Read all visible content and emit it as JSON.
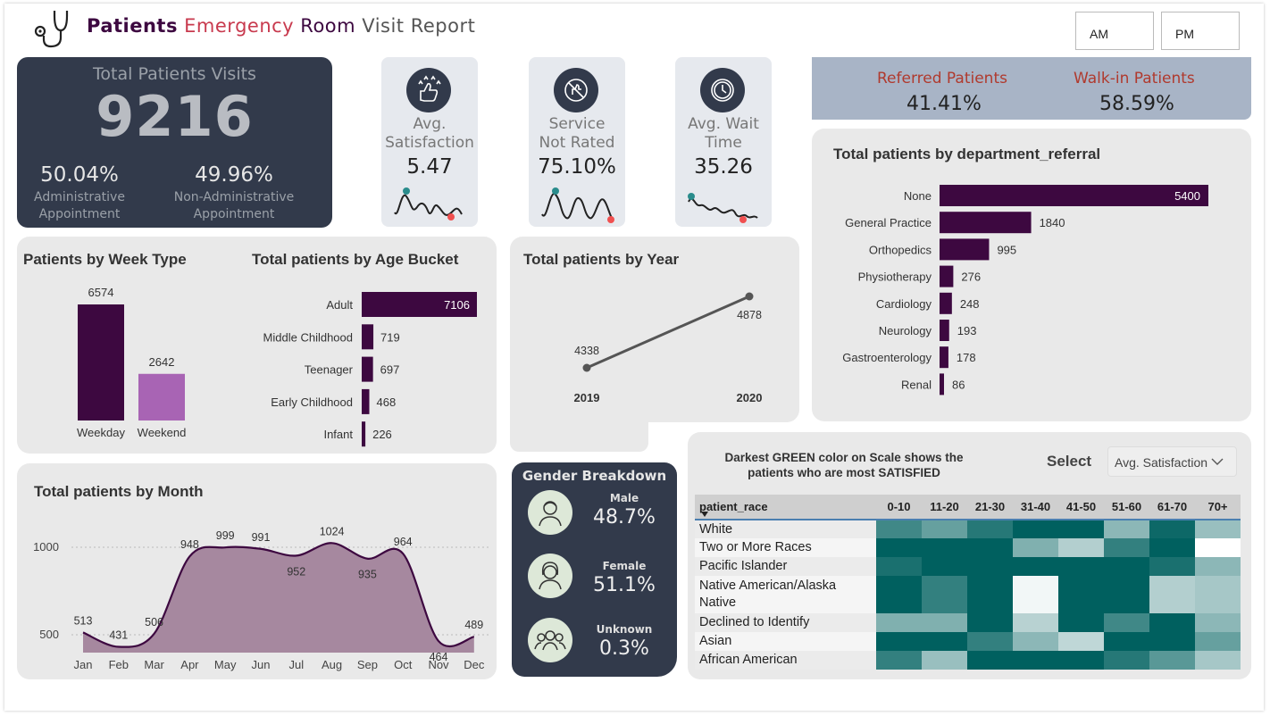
{
  "header": {
    "title_1": "Patients",
    "title_2": "Emergency",
    "title_3": "Room",
    "title_4": "Visit Report",
    "icon": "stethoscope-icon",
    "slicer_am": "AM",
    "slicer_pm": "PM"
  },
  "kpi": {
    "total_label": "Total Patients Visits",
    "total_value": "9216",
    "admin_pct": "50.04%",
    "admin_label_1": "Administrative",
    "admin_label_2": "Appointment",
    "nonadmin_pct": "49.96%",
    "nonadmin_label_1": "Non-Administrative",
    "nonadmin_label_2": "Appointment"
  },
  "cards": [
    {
      "label_1": "Avg.",
      "label_2": "Satisfaction",
      "value": "5.47",
      "icon": "thumbs-up-stars-icon"
    },
    {
      "label_1": "Service",
      "label_2": "Not Rated",
      "value": "75.10%",
      "icon": "no-rating-hand-icon"
    },
    {
      "label_1": "Avg. Wait",
      "label_2": "Time",
      "value": "35.26",
      "icon": "clock-icon"
    }
  ],
  "ratio": {
    "referred_label": "Referred Patients",
    "referred_value": "41.41%",
    "walkin_label": "Walk-in Patients",
    "walkin_value": "58.59%"
  },
  "week_type": {
    "title": "Patients by Week Type",
    "chart_data": {
      "type": "bar",
      "categories": [
        "Weekday",
        "Weekend"
      ],
      "values": [
        6574,
        2642
      ],
      "colors": [
        "#3d0840",
        "#a864b4"
      ]
    }
  },
  "age": {
    "title": "Total patients by Age Bucket",
    "chart_data": {
      "type": "bar",
      "orientation": "horizontal",
      "categories": [
        "Adult",
        "Middle Childhood",
        "Teenager",
        "Early Childhood",
        "Infant"
      ],
      "values": [
        7106,
        719,
        697,
        468,
        226
      ]
    }
  },
  "year": {
    "title": "Total patients by Year",
    "chart_data": {
      "type": "line",
      "categories": [
        "2019",
        "2020"
      ],
      "values": [
        4338,
        4878
      ]
    }
  },
  "dept": {
    "title": "Total patients by department_referral",
    "chart_data": {
      "type": "bar",
      "orientation": "horizontal",
      "categories": [
        "None",
        "General Practice",
        "Orthopedics",
        "Physiotherapy",
        "Cardiology",
        "Neurology",
        "Gastroenterology",
        "Renal"
      ],
      "values": [
        5400,
        1840,
        995,
        276,
        248,
        193,
        178,
        86
      ]
    }
  },
  "month": {
    "title": "Total patients by Month",
    "chart_data": {
      "type": "area",
      "categories": [
        "Jan",
        "Feb",
        "Mar",
        "Apr",
        "May",
        "Jun",
        "Jul",
        "Aug",
        "Sep",
        "Oct",
        "Nov",
        "Dec"
      ],
      "values": [
        513,
        431,
        506,
        948,
        999,
        991,
        952,
        1024,
        935,
        964,
        464,
        489
      ],
      "y_ticks": [
        "500",
        "1000"
      ],
      "ylim": [
        400,
        1100
      ]
    }
  },
  "gender": {
    "title": "Gender Breakdown",
    "items": [
      {
        "label": "Male",
        "value": "48.7%",
        "icon": "male-person-icon"
      },
      {
        "label": "Female",
        "value": "51.1%",
        "icon": "female-person-icon"
      },
      {
        "label": "Unknown",
        "value": "0.3%",
        "icon": "group-icon"
      }
    ]
  },
  "heatmap": {
    "title_1": "Darkest GREEN color on Scale shows the",
    "title_2": "patients who are most SATISFIED",
    "select_label": "Select",
    "dropdown_value": "Avg. Satisfaction",
    "row_header": "patient_race",
    "columns": [
      "0-10",
      "11-20",
      "21-30",
      "31-40",
      "41-50",
      "51-60",
      "61-70",
      "70+"
    ],
    "rows": [
      {
        "name": "White",
        "levels": [
          0.75,
          0.6,
          0.85,
          1.0,
          1.0,
          0.45,
          0.95,
          0.4
        ]
      },
      {
        "name": "Two or More Races",
        "levels": [
          1.0,
          1.0,
          1.0,
          0.5,
          0.3,
          0.8,
          1.0,
          0.0
        ]
      },
      {
        "name": "Pacific Islander",
        "levels": [
          0.9,
          1.0,
          1.0,
          1.0,
          1.0,
          1.0,
          0.9,
          0.45
        ]
      },
      {
        "name": "Native American/Alaska Native",
        "levels": [
          1.0,
          0.8,
          1.0,
          0.05,
          1.0,
          1.0,
          0.3,
          0.35
        ]
      },
      {
        "name": "Declined to Identify",
        "levels": [
          0.5,
          0.5,
          1.0,
          0.28,
          1.0,
          0.75,
          1.0,
          0.45
        ]
      },
      {
        "name": "Asian",
        "levels": [
          1.0,
          1.0,
          0.8,
          0.45,
          0.25,
          1.0,
          1.0,
          0.6
        ]
      },
      {
        "name": "African American",
        "levels": [
          0.8,
          0.4,
          1.0,
          1.0,
          1.0,
          0.85,
          0.65,
          0.35
        ]
      }
    ],
    "color_dark": "#00605f",
    "color_light": "#ffffff"
  }
}
